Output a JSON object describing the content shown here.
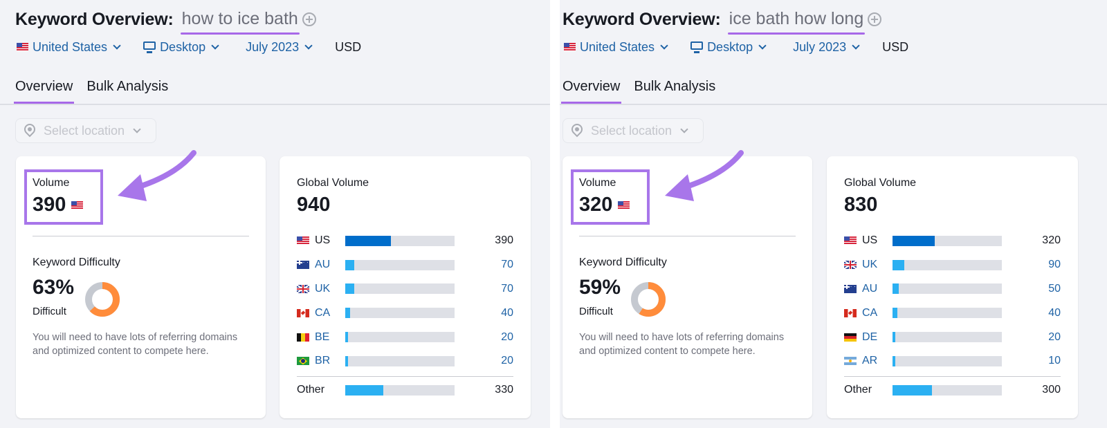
{
  "panels": [
    {
      "title_label": "Keyword Overview:",
      "keyword": "how to ice bath",
      "filters": {
        "country": "United States",
        "device": "Desktop",
        "date": "July 2023",
        "currency": "USD"
      },
      "tabs": [
        {
          "label": "Overview",
          "active": true
        },
        {
          "label": "Bulk Analysis",
          "active": false
        }
      ],
      "location_select": {
        "placeholder": "Select location"
      },
      "volume": {
        "label": "Volume",
        "value": "390",
        "flag": "us-flag"
      },
      "keyword_difficulty": {
        "label": "Keyword Difficulty",
        "value": "63%",
        "percent": 63,
        "level": "Difficult",
        "description": "You will need to have lots of referring domains and optimized content to compete here."
      },
      "global_volume": {
        "label": "Global Volume",
        "value": "940",
        "rows": [
          {
            "code": "US",
            "flag": "us-flag",
            "value": "390",
            "bar_pct": 42
          },
          {
            "code": "AU",
            "flag": "au-flag",
            "value": "70",
            "bar_pct": 8
          },
          {
            "code": "UK",
            "flag": "uk-flag",
            "value": "70",
            "bar_pct": 8
          },
          {
            "code": "CA",
            "flag": "ca-flag",
            "value": "40",
            "bar_pct": 4.5
          },
          {
            "code": "BE",
            "flag": "be-flag",
            "value": "20",
            "bar_pct": 2.5
          },
          {
            "code": "BR",
            "flag": "br-flag",
            "value": "20",
            "bar_pct": 2.5
          }
        ],
        "other": {
          "label": "Other",
          "value": "330",
          "bar_pct": 35
        }
      }
    },
    {
      "title_label": "Keyword Overview:",
      "keyword": "ice bath how long",
      "filters": {
        "country": "United States",
        "device": "Desktop",
        "date": "July 2023",
        "currency": "USD"
      },
      "tabs": [
        {
          "label": "Overview",
          "active": true
        },
        {
          "label": "Bulk Analysis",
          "active": false
        }
      ],
      "location_select": {
        "placeholder": "Select location"
      },
      "volume": {
        "label": "Volume",
        "value": "320",
        "flag": "us-flag"
      },
      "keyword_difficulty": {
        "label": "Keyword Difficulty",
        "value": "59%",
        "percent": 59,
        "level": "Difficult",
        "description": "You will need to have lots of referring domains and optimized content to compete here."
      },
      "global_volume": {
        "label": "Global Volume",
        "value": "830",
        "rows": [
          {
            "code": "US",
            "flag": "us-flag",
            "value": "320",
            "bar_pct": 38.5
          },
          {
            "code": "UK",
            "flag": "uk-flag",
            "value": "90",
            "bar_pct": 10.5
          },
          {
            "code": "AU",
            "flag": "au-flag",
            "value": "50",
            "bar_pct": 6
          },
          {
            "code": "CA",
            "flag": "ca-flag",
            "value": "40",
            "bar_pct": 4.5
          },
          {
            "code": "DE",
            "flag": "de-flag",
            "value": "20",
            "bar_pct": 2.5
          },
          {
            "code": "AR",
            "flag": "ar-flag",
            "value": "10",
            "bar_pct": 2.5
          }
        ],
        "other": {
          "label": "Other",
          "value": "300",
          "bar_pct": 36
        }
      }
    }
  ],
  "colors": {
    "accent_purple": "#a768e8",
    "link_blue": "#1e62a5",
    "bar_primary": "#006dca",
    "bar_secondary": "#2bb0f2",
    "bar_track": "#dee0e6",
    "kd_orange": "#ff8c3b",
    "kd_track": "#c5c9d0",
    "page_bg": "#f2f3f7"
  }
}
